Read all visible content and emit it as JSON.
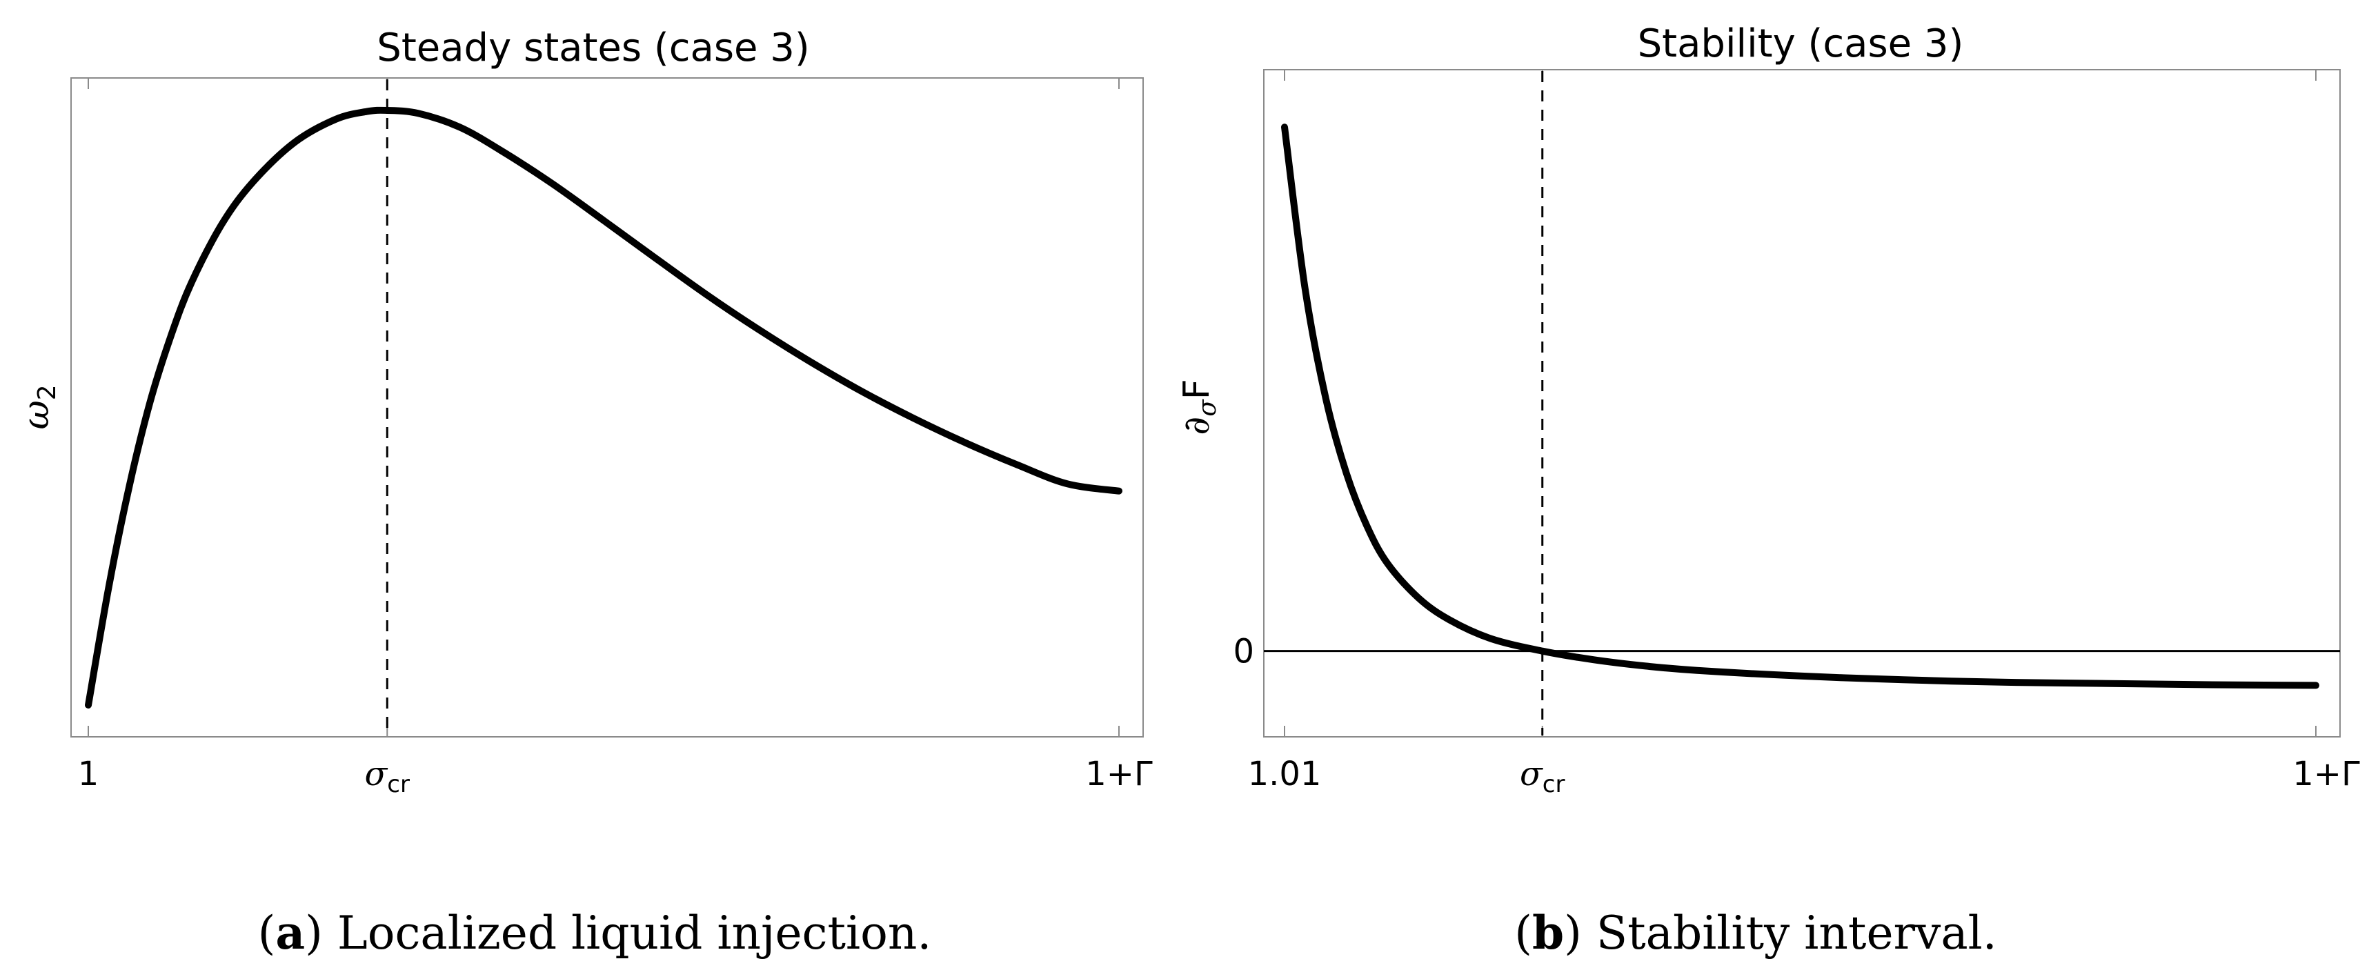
{
  "chart_data": [
    {
      "type": "line",
      "title": "Steady states (case 3)",
      "xlabel": "",
      "ylabel": "ω2",
      "ylabel_main": "ω",
      "ylabel_sub": "2",
      "x_ticks": [
        "1",
        "σcr",
        "1+Γ"
      ],
      "x_tick_main": "σ",
      "x_tick_sub": "cr",
      "xlim": [
        0,
        1
      ],
      "ylim": [
        0,
        1
      ],
      "vline_x": 0.29,
      "series": [
        {
          "name": "ω2",
          "x": [
            0.0,
            0.02,
            0.04,
            0.06,
            0.08,
            0.1,
            0.13,
            0.16,
            0.2,
            0.24,
            0.27,
            0.29,
            0.32,
            0.36,
            0.4,
            0.45,
            0.5,
            0.55,
            0.6,
            0.65,
            0.7,
            0.75,
            0.8,
            0.85,
            0.9,
            0.95,
            1.0
          ],
          "y": [
            0.0,
            0.2,
            0.37,
            0.51,
            0.62,
            0.71,
            0.81,
            0.88,
            0.946,
            0.985,
            0.998,
            1.0,
            0.995,
            0.972,
            0.933,
            0.877,
            0.815,
            0.752,
            0.69,
            0.632,
            0.578,
            0.528,
            0.483,
            0.442,
            0.405,
            0.372,
            0.36
          ]
        }
      ]
    },
    {
      "type": "line",
      "title": "Stability (case 3)",
      "xlabel": "",
      "ylabel": "∂σF",
      "ylabel_main": "∂",
      "ylabel_sub": "σ",
      "ylabel_tail": "F",
      "x_ticks": [
        "1.01",
        "σcr",
        "1+Γ"
      ],
      "x_tick_main": "σ",
      "x_tick_sub": "cr",
      "y_ticks": [
        "0"
      ],
      "xlim": [
        0,
        1
      ],
      "ylim": [
        -0.08,
        0.88
      ],
      "zero_y": 0,
      "vline_x": 0.25,
      "series": [
        {
          "name": "∂σF",
          "x": [
            0.0,
            0.02,
            0.04,
            0.06,
            0.08,
            0.1,
            0.13,
            0.16,
            0.2,
            0.25,
            0.3,
            0.35,
            0.4,
            0.5,
            0.6,
            0.7,
            0.8,
            0.9,
            1.0
          ],
          "y": [
            0.84,
            0.58,
            0.405,
            0.285,
            0.2,
            0.14,
            0.085,
            0.05,
            0.02,
            0.0,
            -0.014,
            -0.024,
            -0.031,
            -0.04,
            -0.046,
            -0.05,
            -0.052,
            -0.054,
            -0.055
          ]
        }
      ]
    }
  ],
  "captions": [
    {
      "letter": "a",
      "open": "(",
      "close": ")",
      "text": " Localized liquid injection."
    },
    {
      "letter": "b",
      "open": "(",
      "close": ")",
      "text": " Stability interval."
    }
  ]
}
